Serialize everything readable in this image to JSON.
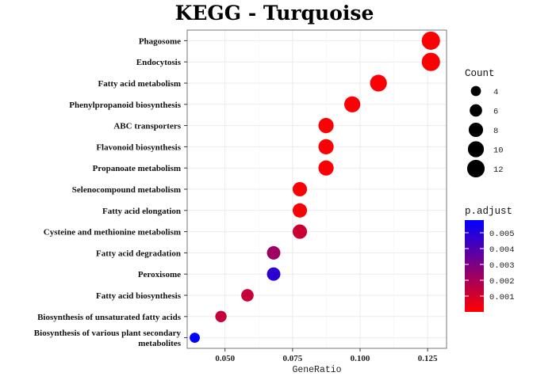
{
  "chart_data": {
    "type": "scatter",
    "title": "KEGG - Turquoise",
    "xlabel": "GeneRatio",
    "ylabel": "",
    "xlim": [
      0.036,
      0.132
    ],
    "x_ticks": [
      "0.050",
      "0.075",
      "0.100",
      "0.125"
    ],
    "x_tick_values": [
      0.05,
      0.075,
      0.1,
      0.125
    ],
    "grid": true,
    "categories": [
      "Phagosome",
      "Endocytosis",
      "Fatty acid metabolism",
      "Phenylpropanoid biosynthesis",
      "ABC transporters",
      "Flavonoid biosynthesis",
      "Propanoate metabolism",
      "Selenocompound metabolism",
      "Fatty acid elongation",
      "Cysteine and methionine metabolism",
      "Fatty acid degradation",
      "Peroxisome",
      "Fatty acid biosynthesis",
      "Biosynthesis of unsaturated fatty acids",
      "Biosynthesis of various plant secondary metabolites"
    ],
    "category_lines": [
      [
        "Phagosome"
      ],
      [
        "Endocytosis"
      ],
      [
        "Fatty acid metabolism"
      ],
      [
        "Phenylpropanoid biosynthesis"
      ],
      [
        "ABC transporters"
      ],
      [
        "Flavonoid biosynthesis"
      ],
      [
        "Propanoate metabolism"
      ],
      [
        "Selenocompound metabolism"
      ],
      [
        "Fatty acid elongation"
      ],
      [
        "Cysteine and methionine metabolism"
      ],
      [
        "Fatty acid degradation"
      ],
      [
        "Peroxisome"
      ],
      [
        "Fatty acid biosynthesis"
      ],
      [
        "Biosynthesis of unsaturated fatty acids"
      ],
      [
        "Biosynthesis of various plant secondary",
        "metabolites"
      ]
    ],
    "gene_ratio": [
      0.1262,
      0.1262,
      0.1068,
      0.0971,
      0.0874,
      0.0874,
      0.0874,
      0.0777,
      0.0777,
      0.0777,
      0.068,
      0.068,
      0.0583,
      0.0485,
      0.0388
    ],
    "count": [
      13,
      13,
      11,
      10,
      9,
      9,
      9,
      8,
      8,
      8,
      7,
      7,
      6,
      5,
      4
    ],
    "p_adjust": [
      0.0001,
      0.0001,
      0.0001,
      0.0001,
      0.0001,
      0.0001,
      0.0001,
      0.0001,
      0.0001,
      0.0012,
      0.0022,
      0.0048,
      0.0013,
      0.0013,
      0.0058
    ],
    "size_legend": {
      "title": "Count",
      "values": [
        4,
        6,
        8,
        10,
        12
      ],
      "labels": [
        "4",
        "6",
        "8",
        "10",
        "12"
      ]
    },
    "color_legend": {
      "title": "p.adjust",
      "range": [
        0.0,
        0.0058
      ],
      "tick_values": [
        0.001,
        0.002,
        0.003,
        0.004,
        0.005
      ],
      "tick_labels": [
        "0.001",
        "0.002",
        "0.003",
        "0.004",
        "0.005"
      ],
      "low_color": "#ff0000",
      "high_color": "#0000ff"
    },
    "legend_position": "right"
  }
}
